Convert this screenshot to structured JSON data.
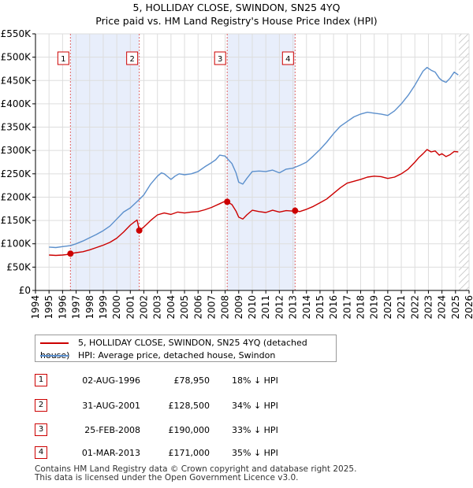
{
  "header": {
    "title": "5, HOLLIDAY CLOSE, SWINDON, SN25 4YQ",
    "subtitle": "Price paid vs. HM Land Registry's House Price Index (HPI)"
  },
  "chart_data": {
    "type": "line",
    "title": "5, HOLLIDAY CLOSE, SWINDON, SN25 4YQ",
    "subtitle": "Price paid vs. HM Land Registry's House Price Index (HPI)",
    "xlabel": "",
    "ylabel": "",
    "xlim": [
      1994,
      2026
    ],
    "ylim": [
      0,
      550000
    ],
    "grid": true,
    "x_ticks": [
      "1994",
      "1995",
      "1996",
      "1997",
      "1998",
      "1999",
      "2000",
      "2001",
      "2002",
      "2003",
      "2004",
      "2005",
      "2006",
      "2007",
      "2008",
      "2009",
      "2010",
      "2011",
      "2012",
      "2013",
      "2014",
      "2015",
      "2016",
      "2017",
      "2018",
      "2019",
      "2020",
      "2021",
      "2022",
      "2023",
      "2024",
      "2025",
      "2026"
    ],
    "y_ticks": [
      {
        "value": 0,
        "label": "£0"
      },
      {
        "value": 50000,
        "label": "£50K"
      },
      {
        "value": 100000,
        "label": "£100K"
      },
      {
        "value": 150000,
        "label": "£150K"
      },
      {
        "value": 200000,
        "label": "£200K"
      },
      {
        "value": 250000,
        "label": "£250K"
      },
      {
        "value": 300000,
        "label": "£300K"
      },
      {
        "value": 350000,
        "label": "£350K"
      },
      {
        "value": 400000,
        "label": "£400K"
      },
      {
        "value": 450000,
        "label": "£450K"
      },
      {
        "value": 500000,
        "label": "£500K"
      },
      {
        "value": 550000,
        "label": "£550K"
      }
    ],
    "shaded_ranges": [
      [
        1996.58,
        2001.66
      ],
      [
        2008.15,
        2013.16
      ]
    ],
    "hatched_from": 2025.25,
    "series": [
      {
        "name": "5, HOLLIDAY CLOSE, SWINDON, SN25 4YQ (detached house)",
        "color": "#cc0000",
        "x": [
          1995.0,
          1995.5,
          1996.0,
          1996.3,
          1996.58,
          1997.0,
          1997.5,
          1998.0,
          1998.5,
          1999.0,
          1999.5,
          2000.0,
          2000.5,
          2001.0,
          2001.3,
          2001.5,
          2001.66,
          2002.0,
          2002.5,
          2003.0,
          2003.5,
          2004.0,
          2004.5,
          2005.0,
          2005.5,
          2006.0,
          2006.5,
          2007.0,
          2007.3,
          2007.6,
          2007.9,
          2008.15,
          2008.5,
          2008.8,
          2009.0,
          2009.3,
          2009.6,
          2010.0,
          2010.5,
          2011.0,
          2011.5,
          2012.0,
          2012.5,
          2013.0,
          2013.16,
          2013.5,
          2014.0,
          2014.5,
          2015.0,
          2015.5,
          2016.0,
          2016.5,
          2017.0,
          2017.5,
          2018.0,
          2018.5,
          2019.0,
          2019.5,
          2020.0,
          2020.5,
          2021.0,
          2021.5,
          2022.0,
          2022.3,
          2022.6,
          2022.9,
          2023.2,
          2023.5,
          2023.8,
          2024.0,
          2024.3,
          2024.6,
          2024.9,
          2025.2
        ],
        "values": [
          76000,
          75000,
          76000,
          77000,
          78950,
          81000,
          83000,
          87000,
          92000,
          97000,
          103000,
          112000,
          125000,
          140000,
          147000,
          151000,
          128500,
          136000,
          150000,
          162000,
          166000,
          163000,
          168000,
          166000,
          168000,
          169000,
          173000,
          178000,
          182000,
          186000,
          190000,
          190000,
          184000,
          170000,
          157000,
          153000,
          162000,
          172000,
          169000,
          167000,
          172000,
          168000,
          171000,
          170000,
          171000,
          169000,
          174000,
          180000,
          188000,
          196000,
          208000,
          220000,
          230000,
          234000,
          238000,
          243000,
          245000,
          244000,
          240000,
          243000,
          250000,
          260000,
          275000,
          285000,
          293000,
          302000,
          297000,
          299000,
          290000,
          293000,
          287000,
          291000,
          298000,
          297000
        ]
      },
      {
        "name": "HPI: Average price, detached house, Swindon",
        "color": "#5b8fcc",
        "x": [
          1995.0,
          1995.5,
          1996.0,
          1996.58,
          1997.0,
          1997.5,
          1998.0,
          1998.5,
          1999.0,
          1999.5,
          2000.0,
          2000.5,
          2001.0,
          2001.66,
          2002.0,
          2002.5,
          2003.0,
          2003.3,
          2003.5,
          2003.8,
          2004.0,
          2004.3,
          2004.6,
          2005.0,
          2005.5,
          2006.0,
          2006.5,
          2007.0,
          2007.3,
          2007.6,
          2008.0,
          2008.15,
          2008.5,
          2008.8,
          2009.0,
          2009.3,
          2009.6,
          2010.0,
          2010.5,
          2011.0,
          2011.5,
          2012.0,
          2012.5,
          2013.0,
          2013.16,
          2013.5,
          2014.0,
          2014.5,
          2015.0,
          2015.5,
          2016.0,
          2016.5,
          2017.0,
          2017.5,
          2018.0,
          2018.5,
          2019.0,
          2019.5,
          2020.0,
          2020.5,
          2021.0,
          2021.5,
          2022.0,
          2022.3,
          2022.6,
          2022.9,
          2023.2,
          2023.5,
          2023.8,
          2024.0,
          2024.3,
          2024.6,
          2024.9,
          2025.2
        ],
        "values": [
          93000,
          92000,
          94000,
          96000,
          100000,
          106000,
          113000,
          120000,
          128000,
          138000,
          153000,
          168000,
          177000,
          195000,
          205000,
          228000,
          245000,
          252000,
          250000,
          243000,
          238000,
          245000,
          250000,
          248000,
          250000,
          255000,
          265000,
          274000,
          280000,
          290000,
          288000,
          283000,
          272000,
          252000,
          232000,
          228000,
          240000,
          255000,
          256000,
          255000,
          258000,
          252000,
          260000,
          262000,
          264000,
          268000,
          275000,
          288000,
          302000,
          318000,
          336000,
          352000,
          362000,
          372000,
          378000,
          382000,
          380000,
          378000,
          375000,
          385000,
          400000,
          418000,
          440000,
          455000,
          470000,
          478000,
          472000,
          468000,
          455000,
          450000,
          446000,
          455000,
          468000,
          462000
        ]
      }
    ],
    "sales": [
      {
        "n": "1",
        "x": 1996.58,
        "value": 78950
      },
      {
        "n": "2",
        "x": 2001.66,
        "value": 128500
      },
      {
        "n": "3",
        "x": 2008.15,
        "value": 190000
      },
      {
        "n": "4",
        "x": 2013.16,
        "value": 171000
      }
    ]
  },
  "legend": {
    "items": [
      {
        "label": "5, HOLLIDAY CLOSE, SWINDON, SN25 4YQ (detached house)",
        "color": "#cc0000"
      },
      {
        "label": "HPI: Average price, detached house, Swindon",
        "color": "#5b8fcc"
      }
    ]
  },
  "sales_table": [
    {
      "n": "1",
      "date": "02-AUG-1996",
      "price": "£78,950",
      "hpi": "18% ↓ HPI"
    },
    {
      "n": "2",
      "date": "31-AUG-2001",
      "price": "£128,500",
      "hpi": "34% ↓ HPI"
    },
    {
      "n": "3",
      "date": "25-FEB-2008",
      "price": "£190,000",
      "hpi": "33% ↓ HPI"
    },
    {
      "n": "4",
      "date": "01-MAR-2013",
      "price": "£171,000",
      "hpi": "35% ↓ HPI"
    }
  ],
  "footer": {
    "line1": "Contains HM Land Registry data © Crown copyright and database right 2025.",
    "line2": "This data is licensed under the Open Government Licence v3.0."
  }
}
